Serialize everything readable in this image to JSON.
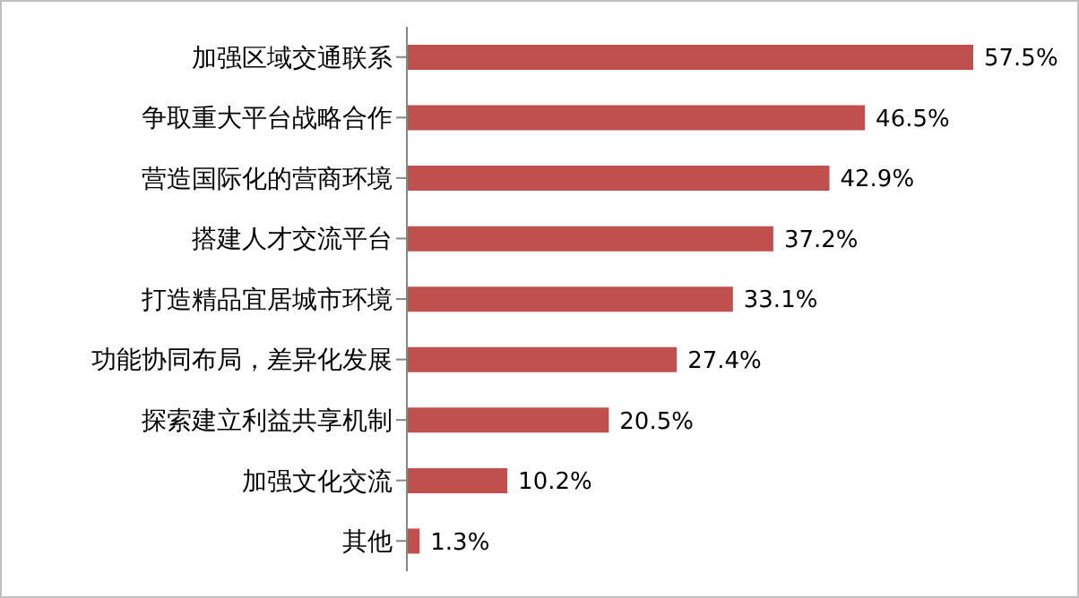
{
  "chart_data": {
    "type": "bar",
    "orientation": "horizontal",
    "relative": false,
    "categories": [
      "加强区域交通联系",
      "争取重大平台战略合作",
      "营造国际化的营商环境",
      "搭建人才交流平台",
      "打造精品宜居城市环境",
      "功能协同布局，差异化发展",
      "探索建立利益共享机制",
      "加强文化交流",
      "其他"
    ],
    "values": [
      57.5,
      46.5,
      42.9,
      37.2,
      33.1,
      27.4,
      20.5,
      10.2,
      1.3
    ],
    "value_labels": [
      "57.5%",
      "46.5%",
      "42.9%",
      "37.2%",
      "33.1%",
      "27.4%",
      "20.5%",
      "10.2%",
      "1.3%"
    ],
    "color": "#c0504d"
  }
}
